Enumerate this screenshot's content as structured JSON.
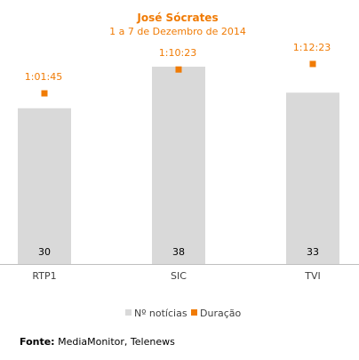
{
  "chart_data": {
    "type": "bar",
    "title": "José Sócrates",
    "subtitle": "1 a 7 de Dezembro de 2014",
    "categories": [
      "RTP1",
      "SIC",
      "TVI"
    ],
    "series": [
      {
        "name": "Nº notícias",
        "values": [
          30,
          38,
          33
        ],
        "labels": [
          "30",
          "38",
          "33"
        ]
      },
      {
        "name": "Duração",
        "values": [
          "1:01:45",
          "1:10:23",
          "1:12:23"
        ],
        "labels": [
          "1:01:45",
          "1:10:23",
          "1:12:23"
        ]
      }
    ],
    "ylim": [
      0,
      44
    ],
    "grid": false,
    "legend_position": "bottom",
    "colors": {
      "bar": "#d9d9d9",
      "marker": "#f07b05",
      "title": "#f07b05",
      "axis": "#bfbfbf",
      "text": "#404040"
    }
  },
  "footer": {
    "label": "Fonte:",
    "text": "MediaMonitor, Telenews"
  }
}
